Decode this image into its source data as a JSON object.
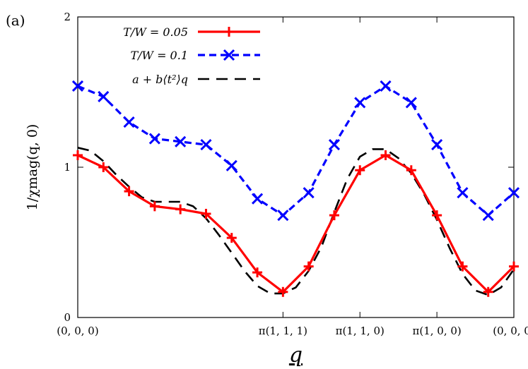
{
  "panel_label": "(a)",
  "chart_data": {
    "type": "line",
    "xlabel": "q",
    "ylabel": "1/χmag(q, 0)",
    "x_ticks": [
      {
        "x": 0,
        "label": "(0, 0, 0)"
      },
      {
        "x": 8,
        "label": "π(1, 1, 1)"
      },
      {
        "x": 11,
        "label": "π(1, 1, 0)"
      },
      {
        "x": 14,
        "label": "π(1, 0, 0)"
      },
      {
        "x": 17,
        "label": "(0, 0, 0)"
      }
    ],
    "y_ticks": [
      {
        "y": 0,
        "label": "0"
      },
      {
        "y": 1,
        "label": "1"
      },
      {
        "y": 2,
        "label": "2"
      }
    ],
    "xlim": [
      0,
      17
    ],
    "ylim": [
      0,
      2
    ],
    "series": [
      {
        "name": "T/W = 0.05",
        "color": "#ff0000",
        "style": "solid",
        "marker": "plus",
        "x": [
          0,
          1,
          2,
          3,
          4,
          5,
          6,
          7,
          8,
          9,
          10,
          11,
          12,
          13,
          14,
          15,
          16,
          17
        ],
        "values": [
          1.08,
          1.0,
          0.84,
          0.74,
          0.72,
          0.69,
          0.53,
          0.3,
          0.17,
          0.34,
          0.68,
          0.98,
          1.08,
          0.98,
          0.68,
          0.34,
          0.17,
          0.34
        ]
      },
      {
        "name": "T/W = 0.1",
        "color": "#0000ff",
        "style": "dashed",
        "marker": "cross",
        "x": [
          0,
          1,
          2,
          3,
          4,
          5,
          6,
          7,
          8,
          9,
          10,
          11,
          12,
          13,
          14,
          15,
          16,
          17
        ],
        "values": [
          1.54,
          1.47,
          1.3,
          1.19,
          1.17,
          1.15,
          1.01,
          0.79,
          0.68,
          0.83,
          1.15,
          1.43,
          1.54,
          1.43,
          1.15,
          0.83,
          0.68,
          0.83
        ]
      },
      {
        "name": "a + b⟨t²⟩q",
        "color": "#000000",
        "style": "dashed",
        "marker": "none",
        "x": [
          0,
          0.5,
          1,
          1.5,
          2,
          2.5,
          3,
          3.5,
          4,
          4.5,
          5,
          5.5,
          6,
          6.5,
          7,
          7.5,
          8,
          8.5,
          9,
          9.5,
          10,
          10.5,
          11,
          11.5,
          12,
          12.5,
          13,
          13.5,
          14,
          14.5,
          15,
          15.5,
          16,
          16.5,
          17
        ],
        "values": [
          1.13,
          1.11,
          1.04,
          0.95,
          0.87,
          0.8,
          0.77,
          0.77,
          0.77,
          0.74,
          0.66,
          0.55,
          0.43,
          0.31,
          0.21,
          0.16,
          0.16,
          0.2,
          0.31,
          0.47,
          0.7,
          0.92,
          1.07,
          1.12,
          1.12,
          1.06,
          0.96,
          0.82,
          0.65,
          0.46,
          0.29,
          0.18,
          0.15,
          0.2,
          0.32
        ]
      }
    ],
    "legend": {
      "position": "top-left"
    },
    "grid": false
  }
}
